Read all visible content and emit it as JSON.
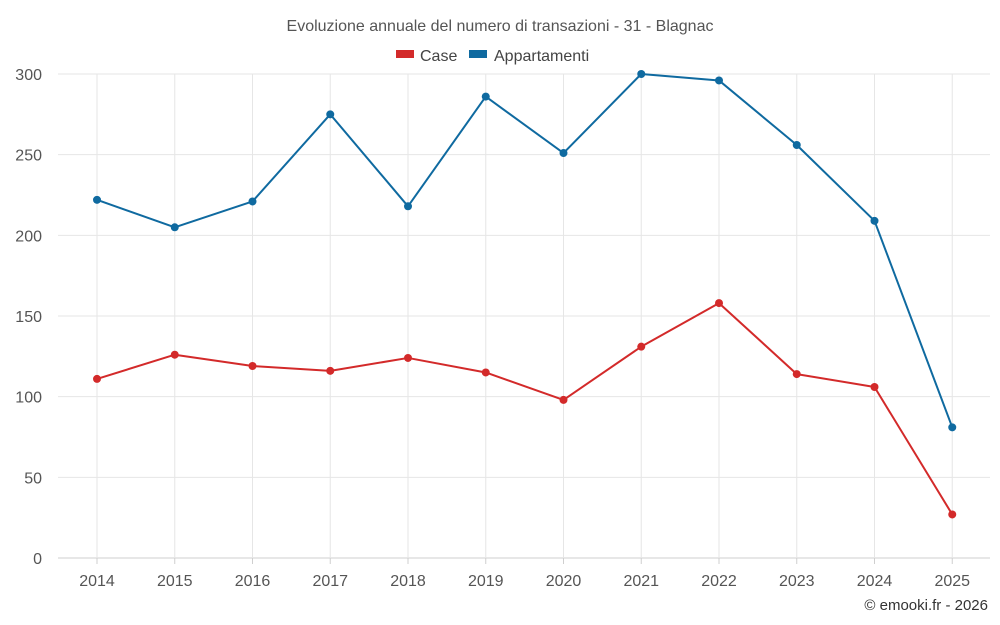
{
  "chart_data": {
    "type": "line",
    "title": "Evoluzione annuale del numero di transazioni - 31 - Blagnac",
    "categories": [
      "2014",
      "2015",
      "2016",
      "2017",
      "2018",
      "2019",
      "2020",
      "2021",
      "2022",
      "2023",
      "2024",
      "2025"
    ],
    "series": [
      {
        "name": "Case",
        "color": "#d32a2a",
        "values": [
          111,
          126,
          119,
          116,
          124,
          115,
          98,
          131,
          158,
          114,
          106,
          27
        ]
      },
      {
        "name": "Appartamenti",
        "color": "#0f6aa0",
        "values": [
          222,
          205,
          221,
          275,
          218,
          286,
          251,
          300,
          296,
          256,
          209,
          81
        ]
      }
    ],
    "ylim": [
      0,
      300
    ],
    "yticks": [
      0,
      50,
      100,
      150,
      200,
      250,
      300
    ],
    "xlabel": "",
    "ylabel": "",
    "grid": true,
    "legend_position": "top-center"
  },
  "credit": "© emooki.fr - 2026"
}
